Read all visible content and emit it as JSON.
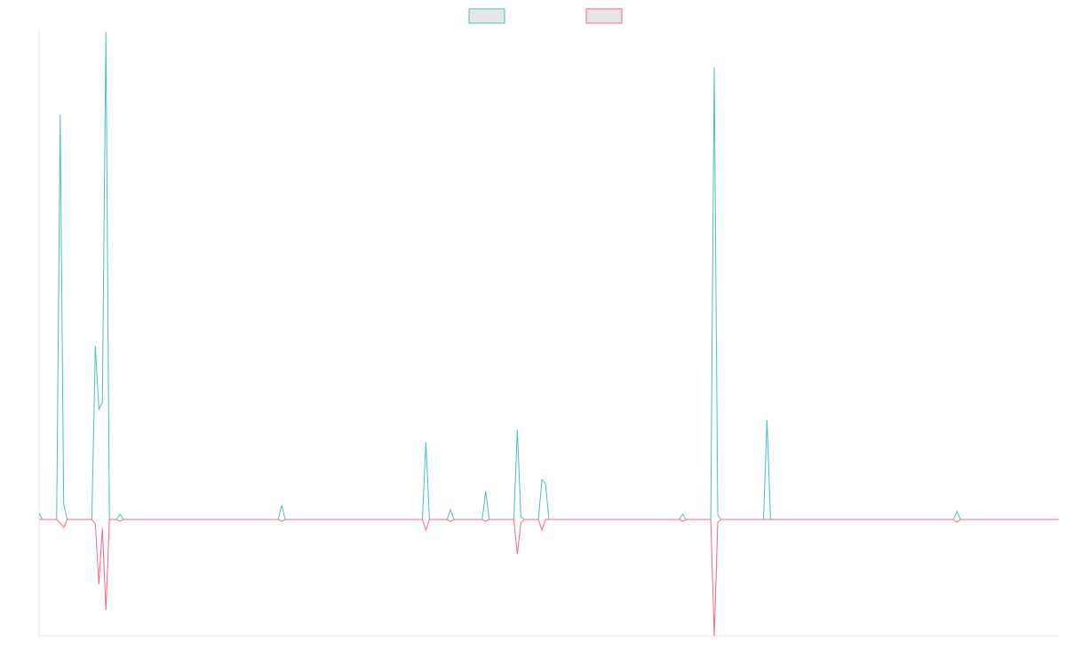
{
  "chart_data": {
    "type": "line",
    "x": [
      0,
      1,
      5,
      6,
      7,
      8,
      15,
      16,
      17,
      18,
      19,
      20,
      22,
      23,
      24,
      68,
      69,
      70,
      109,
      110,
      111,
      116,
      117,
      118,
      126,
      127,
      128,
      135,
      136,
      137,
      138,
      142,
      143,
      144,
      145,
      182,
      183,
      184,
      191,
      192,
      193,
      194,
      206,
      207,
      208,
      260,
      261,
      262,
      290
    ],
    "series": [
      {
        "color": "#4bc0c0",
        "values": [
          0.7,
          0,
          0,
          45.6,
          1.7,
          0,
          0,
          19.5,
          12.4,
          13.2,
          54.9,
          0,
          0,
          0.6,
          0,
          0,
          1.6,
          0,
          0,
          8.7,
          0,
          0,
          1.1,
          0,
          0,
          3.2,
          0,
          0,
          10.1,
          0.3,
          0,
          0,
          4.5,
          4.0,
          0,
          0,
          0.6,
          0,
          0,
          50.9,
          0.5,
          0,
          0,
          11.2,
          0,
          0,
          0.9,
          0,
          0
        ]
      },
      {
        "color": "#ff6384",
        "values": [
          0,
          0,
          0,
          -0.4,
          -0.9,
          0,
          0,
          -0.5,
          -7.3,
          -1.0,
          -10.2,
          0,
          0,
          -0.2,
          0,
          0,
          -0.2,
          0,
          0,
          -1.2,
          0,
          0,
          -0.2,
          0,
          0,
          -0.2,
          0,
          0,
          -3.9,
          -0.4,
          0,
          0,
          -1.2,
          0,
          0,
          0,
          -0.2,
          0,
          0,
          -13.1,
          -0.3,
          0,
          0,
          0,
          0,
          0,
          -0.3,
          0,
          0
        ]
      }
    ],
    "xlim": [
      0,
      290
    ],
    "ylim": [
      -13.1,
      54.9
    ],
    "legend": "top"
  }
}
